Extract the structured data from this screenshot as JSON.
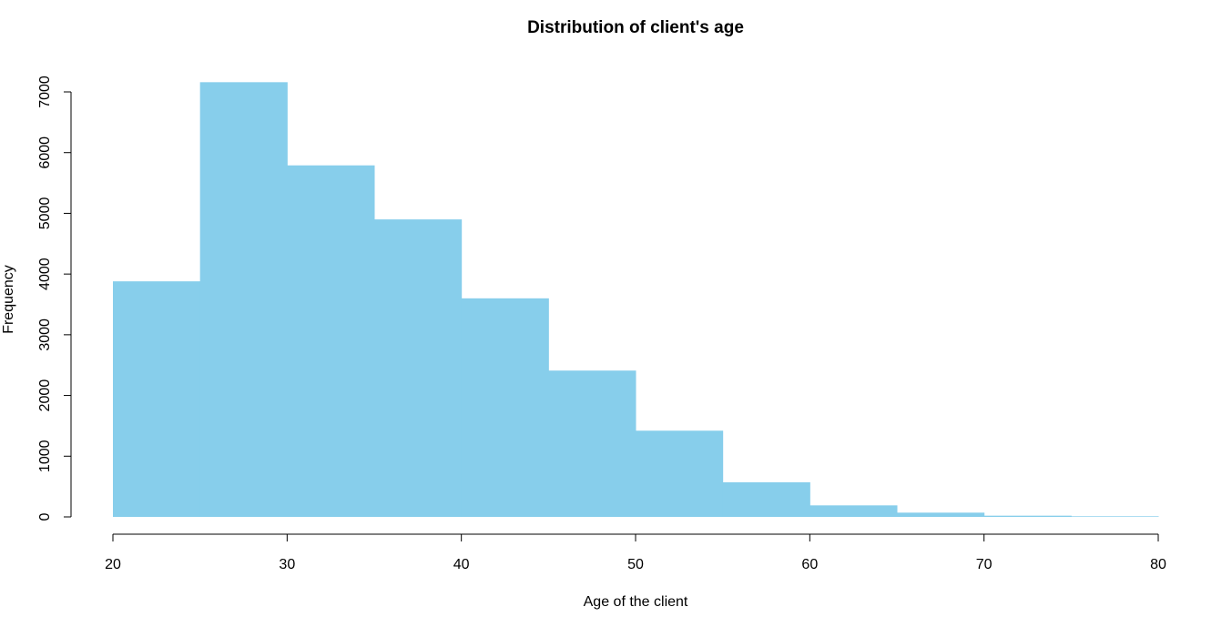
{
  "chart_data": {
    "type": "bar",
    "title": "Distribution of client's age",
    "xlabel": "Age of the client",
    "ylabel": "Frequency",
    "bin_edges": [
      20,
      25,
      30,
      35,
      40,
      45,
      50,
      55,
      60,
      65,
      70,
      75,
      80
    ],
    "values": [
      3880,
      7160,
      5790,
      4900,
      3600,
      2410,
      1420,
      570,
      190,
      70,
      20,
      10
    ],
    "xlim": [
      20,
      80
    ],
    "ylim": [
      0,
      7160
    ],
    "x_ticks": [
      20,
      30,
      40,
      50,
      60,
      70,
      80
    ],
    "y_ticks": [
      0,
      1000,
      2000,
      3000,
      4000,
      5000,
      6000,
      7000
    ],
    "grid": false,
    "legend": "none",
    "bar_color": "#87CEEB"
  }
}
